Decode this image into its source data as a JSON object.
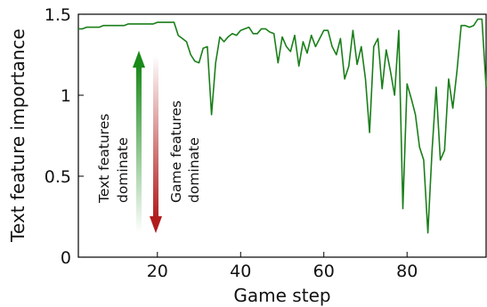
{
  "chart_data": {
    "type": "line",
    "title": "",
    "xlabel": "Game step",
    "ylabel": "Text feature importance",
    "xlim": [
      1,
      99
    ],
    "ylim": [
      0,
      1.5
    ],
    "x_ticks": [
      20,
      40,
      60,
      80
    ],
    "y_ticks": [
      0,
      0.5,
      1,
      1.5
    ],
    "x_tick_labels": [
      "20",
      "40",
      "60",
      "80"
    ],
    "y_tick_labels": [
      "0",
      "0.5",
      "1",
      "1.5"
    ],
    "grid": false,
    "legend": "none",
    "series_color": "#1a7f1a",
    "x": [
      1,
      2,
      3,
      4,
      5,
      6,
      7,
      8,
      9,
      10,
      11,
      12,
      13,
      14,
      15,
      16,
      17,
      18,
      19,
      20,
      21,
      22,
      23,
      24,
      25,
      26,
      27,
      28,
      29,
      30,
      31,
      32,
      33,
      34,
      35,
      36,
      37,
      38,
      39,
      40,
      41,
      42,
      43,
      44,
      45,
      46,
      47,
      48,
      49,
      50,
      51,
      52,
      53,
      54,
      55,
      56,
      57,
      58,
      59,
      60,
      61,
      62,
      63,
      64,
      65,
      66,
      67,
      68,
      69,
      70,
      71,
      72,
      73,
      74,
      75,
      76,
      77,
      78,
      79,
      80,
      81,
      82,
      83,
      84,
      85,
      86,
      87,
      88,
      89,
      90,
      91,
      92,
      93,
      94,
      95,
      96,
      97,
      98,
      99
    ],
    "values": [
      1.41,
      1.41,
      1.42,
      1.42,
      1.42,
      1.42,
      1.43,
      1.43,
      1.43,
      1.43,
      1.43,
      1.43,
      1.44,
      1.44,
      1.44,
      1.44,
      1.44,
      1.44,
      1.44,
      1.45,
      1.45,
      1.45,
      1.45,
      1.45,
      1.37,
      1.35,
      1.33,
      1.25,
      1.21,
      1.2,
      1.29,
      1.3,
      0.88,
      1.2,
      1.36,
      1.33,
      1.36,
      1.38,
      1.37,
      1.4,
      1.41,
      1.42,
      1.38,
      1.38,
      1.41,
      1.41,
      1.39,
      1.38,
      1.2,
      1.36,
      1.3,
      1.27,
      1.37,
      1.18,
      1.33,
      1.26,
      1.37,
      1.3,
      1.35,
      1.4,
      1.4,
      1.3,
      1.25,
      1.35,
      1.1,
      1.18,
      1.4,
      1.19,
      1.3,
      1.1,
      0.77,
      1.3,
      1.35,
      1.04,
      1.28,
      1.15,
      1.0,
      1.4,
      0.3,
      1.07,
      0.98,
      0.88,
      0.68,
      0.6,
      0.15,
      0.65,
      1.05,
      0.6,
      0.66,
      1.1,
      0.92,
      1.15,
      1.43,
      1.43,
      1.42,
      1.43,
      1.47,
      1.47,
      1.05
    ],
    "annotations": {
      "text_dominate": [
        "Text features",
        "dominate"
      ],
      "game_dominate": [
        "Game features",
        "dominate"
      ],
      "text_arrow_color": "#1a8a1a",
      "game_arrow_color": "#b01c1c"
    }
  }
}
